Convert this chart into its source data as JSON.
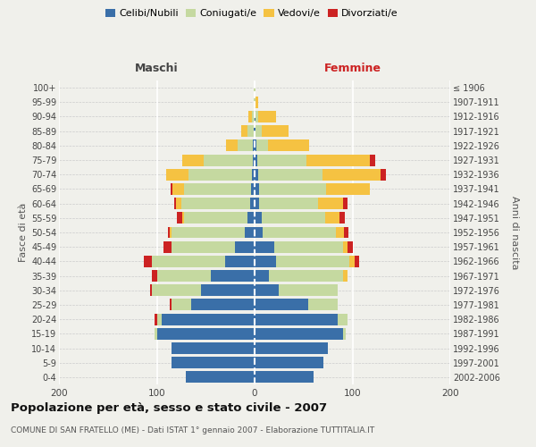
{
  "age_groups": [
    "0-4",
    "5-9",
    "10-14",
    "15-19",
    "20-24",
    "25-29",
    "30-34",
    "35-39",
    "40-44",
    "45-49",
    "50-54",
    "55-59",
    "60-64",
    "65-69",
    "70-74",
    "75-79",
    "80-84",
    "85-89",
    "90-94",
    "95-99",
    "100+"
  ],
  "birth_years": [
    "2002-2006",
    "1997-2001",
    "1992-1996",
    "1987-1991",
    "1982-1986",
    "1977-1981",
    "1972-1976",
    "1967-1971",
    "1962-1966",
    "1957-1961",
    "1952-1956",
    "1947-1951",
    "1942-1946",
    "1937-1941",
    "1932-1936",
    "1927-1931",
    "1922-1926",
    "1917-1921",
    "1912-1916",
    "1907-1911",
    "≤ 1906"
  ],
  "males_celibi": [
    70,
    85,
    85,
    100,
    95,
    65,
    55,
    45,
    30,
    20,
    10,
    7,
    5,
    4,
    3,
    2,
    2,
    1,
    0,
    0,
    0
  ],
  "males_coniugati": [
    0,
    0,
    0,
    2,
    5,
    20,
    50,
    55,
    75,
    65,
    75,
    65,
    70,
    68,
    65,
    50,
    15,
    6,
    3,
    1,
    1
  ],
  "males_vedovi": [
    0,
    0,
    0,
    0,
    0,
    0,
    0,
    0,
    0,
    0,
    2,
    2,
    5,
    12,
    22,
    22,
    12,
    7,
    3,
    0,
    0
  ],
  "males_divorziati": [
    0,
    0,
    0,
    0,
    2,
    2,
    2,
    5,
    8,
    8,
    2,
    5,
    2,
    2,
    0,
    0,
    0,
    0,
    0,
    0,
    0
  ],
  "females_nubili": [
    60,
    70,
    75,
    90,
    85,
    55,
    25,
    15,
    22,
    20,
    8,
    7,
    5,
    5,
    4,
    3,
    2,
    1,
    1,
    0,
    0
  ],
  "females_coniugate": [
    0,
    0,
    0,
    3,
    10,
    30,
    60,
    75,
    75,
    70,
    75,
    65,
    60,
    68,
    65,
    50,
    12,
    6,
    3,
    1,
    1
  ],
  "females_vedove": [
    0,
    0,
    0,
    0,
    0,
    0,
    0,
    5,
    5,
    5,
    8,
    15,
    25,
    45,
    60,
    65,
    42,
    28,
    18,
    3,
    0
  ],
  "females_divorziate": [
    0,
    0,
    0,
    0,
    0,
    0,
    0,
    0,
    5,
    5,
    5,
    5,
    5,
    0,
    5,
    5,
    0,
    0,
    0,
    0,
    0
  ],
  "colors": {
    "celibi": "#3a6fa8",
    "coniugati": "#c5d9a0",
    "vedovi": "#f5c242",
    "divorziati": "#cc2222"
  },
  "title": "Popolazione per età, sesso e stato civile - 2007",
  "subtitle": "COMUNE DI SAN FRATELLO (ME) - Dati ISTAT 1° gennaio 2007 - Elaborazione TUTTITALIA.IT",
  "label_maschi": "Maschi",
  "label_femmine": "Femmine",
  "ylabel_left": "Fasce di età",
  "ylabel_right": "Anni di nascita",
  "legend_labels": [
    "Celibi/Nubili",
    "Coniugati/e",
    "Vedovi/e",
    "Divorziati/e"
  ],
  "xlim": 200,
  "bg_color": "#f0f0eb"
}
